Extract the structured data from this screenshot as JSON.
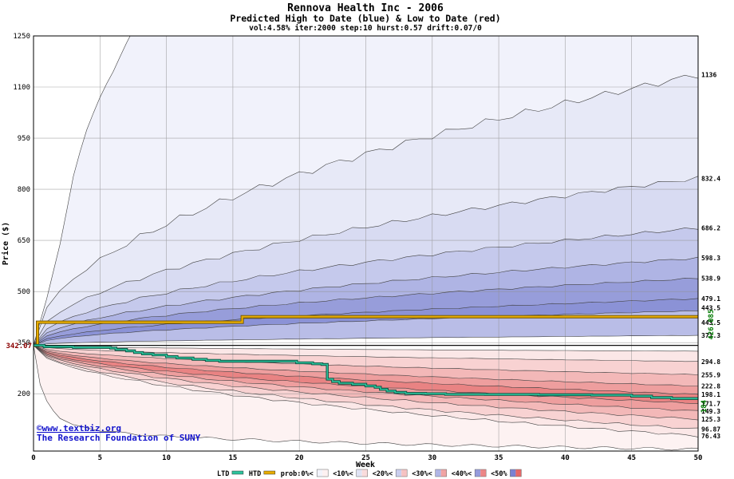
{
  "header": {
    "title": "Rennova Health Inc - 2006",
    "subtitle": "Predicted High to Date (blue) &  Low to Date (red)",
    "params": "vol:4.58% iter:2000 step:10 hurst:0.57 drift:0.07/0"
  },
  "axes": {
    "y_label": "Price ($)",
    "x_label": "Week",
    "y_ticks": [
      200,
      350,
      500,
      650,
      800,
      950,
      1100,
      1250
    ],
    "x_ticks": [
      0,
      5,
      10,
      15,
      20,
      25,
      30,
      35,
      40,
      45,
      50
    ],
    "y_min": 31.9,
    "y_max": 1250,
    "x_min": 0,
    "x_max": 50
  },
  "annotations": {
    "start_label": "342.07",
    "copyright1": "©www.textbiz.org",
    "copyright2": "The Research Foundation of SUNY"
  },
  "chart_data": {
    "type": "area",
    "title": "Rennova Health Inc - 2006",
    "xlabel": "Week",
    "ylabel": "Price ($)",
    "x_range": [
      0,
      50
    ],
    "ylim": [
      31.9,
      1250
    ],
    "start_price": 342.07,
    "blue_fan_quantile_ends": [
      1136,
      832.4,
      686.2,
      598.3,
      538.9,
      479.1,
      443.5,
      371.3
    ],
    "blue_extreme_path": [
      [
        0,
        342.07
      ],
      [
        1,
        480
      ],
      [
        2,
        640
      ],
      [
        3,
        840
      ],
      [
        3.8,
        950
      ],
      [
        5.3,
        1100
      ],
      [
        6.5,
        1190
      ],
      [
        8,
        1290
      ],
      [
        50,
        1290
      ]
    ],
    "red_fan_quantile_ends": [
      325,
      294.8,
      255.9,
      222.8,
      198.1,
      171.7,
      149.3,
      125.3,
      96.87,
      76.43
    ],
    "red_extreme_path": [
      [
        0,
        342.07
      ],
      [
        0.4,
        240
      ],
      [
        0.8,
        190
      ],
      [
        1.5,
        150
      ],
      [
        2,
        128
      ],
      [
        3,
        108
      ],
      [
        5,
        92
      ],
      [
        8,
        80
      ],
      [
        12,
        71
      ],
      [
        20,
        60
      ],
      [
        30,
        50
      ],
      [
        40,
        43
      ],
      [
        50,
        37
      ]
    ],
    "band_colors_blue": [
      "#f1f2fb",
      "#e7e9f7",
      "#d8dbf2",
      "#c5c9ec",
      "#afb4e4",
      "#979dda",
      "#8b92d6",
      "#b9bde7"
    ],
    "band_colors_red": [
      "#fbe7e7",
      "#f8d2d2",
      "#f3b8b8",
      "#ee9e9e",
      "#e98383",
      "#ee9e9e",
      "#f3b8b8",
      "#f8d2d2",
      "#fbe7e7",
      "#fdf2f2"
    ],
    "htd": {
      "label": "HTD",
      "final_label": "426.085",
      "points": [
        [
          0,
          342.07
        ],
        [
          0.3,
          410
        ],
        [
          15.4,
          410
        ],
        [
          15.7,
          426.085
        ],
        [
          50,
          426.085
        ]
      ]
    },
    "ltd": {
      "label": "LTD",
      "final_label": "184",
      "points": [
        [
          0,
          342.07
        ],
        [
          0.8,
          338
        ],
        [
          3,
          336
        ],
        [
          5.8,
          334
        ],
        [
          6.2,
          330
        ],
        [
          7,
          326
        ],
        [
          7.6,
          321
        ],
        [
          8.2,
          317
        ],
        [
          9,
          314
        ],
        [
          10,
          309
        ],
        [
          10.8,
          305
        ],
        [
          12,
          301
        ],
        [
          13,
          298
        ],
        [
          14,
          295.5
        ],
        [
          19.4,
          295.5
        ],
        [
          19.8,
          291
        ],
        [
          21,
          288
        ],
        [
          21.7,
          286
        ],
        [
          22.1,
          243
        ],
        [
          22.5,
          236
        ],
        [
          23,
          231
        ],
        [
          24,
          228
        ],
        [
          25,
          223
        ],
        [
          25.7,
          219
        ],
        [
          26.1,
          213
        ],
        [
          26.6,
          208
        ],
        [
          27.2,
          204
        ],
        [
          28,
          201
        ],
        [
          29.5,
          200
        ],
        [
          31,
          198.5
        ],
        [
          34,
          198
        ],
        [
          38,
          197
        ],
        [
          42,
          196
        ],
        [
          45,
          193
        ],
        [
          46.5,
          189
        ],
        [
          48,
          186
        ],
        [
          50,
          184
        ]
      ]
    },
    "right_axis_labels": [
      {
        "text": "1136",
        "at": 1136
      },
      {
        "text": "832.4",
        "at": 832.4
      },
      {
        "text": "686.2",
        "at": 686.2
      },
      {
        "text": "598.3",
        "at": 598.3
      },
      {
        "text": "538.9",
        "at": 538.9
      },
      {
        "text": "479.1",
        "at": 479.1
      },
      {
        "text": "443.5",
        "at": 452
      },
      {
        "text": "443.5",
        "at": 409
      },
      {
        "text": "371.3",
        "at": 371.3
      },
      {
        "text": "294.8",
        "at": 294.8
      },
      {
        "text": "255.9",
        "at": 255.9
      },
      {
        "text": "222.8",
        "at": 222.8
      },
      {
        "text": "198.1",
        "at": 198.1
      },
      {
        "text": "171.7",
        "at": 171.7
      },
      {
        "text": "149.3",
        "at": 149.3
      },
      {
        "text": "125.3",
        "at": 125.3
      },
      {
        "text": "96.87",
        "at": 96.87
      },
      {
        "text": "76.43",
        "at": 76.43
      }
    ]
  },
  "legend": {
    "ltd_label": "LTD",
    "ltd_color": "#2cc39c",
    "htd_label": "HTD",
    "htd_color": "#e8ac00",
    "prob_items": [
      {
        "label": "prob:0%<",
        "blue": "#f2f3fb",
        "red": "#fdf1f1"
      },
      {
        "label": "<10%<",
        "blue": "#e0e3f4",
        "red": "#fadcdc"
      },
      {
        "label": "<20%<",
        "blue": "#caceee",
        "red": "#f6c2c2"
      },
      {
        "label": "<30%<",
        "blue": "#b0b5e5",
        "red": "#f1a4a4"
      },
      {
        "label": "<40%<",
        "blue": "#959bdc",
        "red": "#ec8686"
      },
      {
        "label": "<50%",
        "blue": "#7b82d3",
        "red": "#e66868"
      }
    ]
  },
  "colors": {
    "grid": "#909090",
    "curve_stroke": "#404040",
    "start_line": "#111111",
    "green_label": "#007a00"
  }
}
